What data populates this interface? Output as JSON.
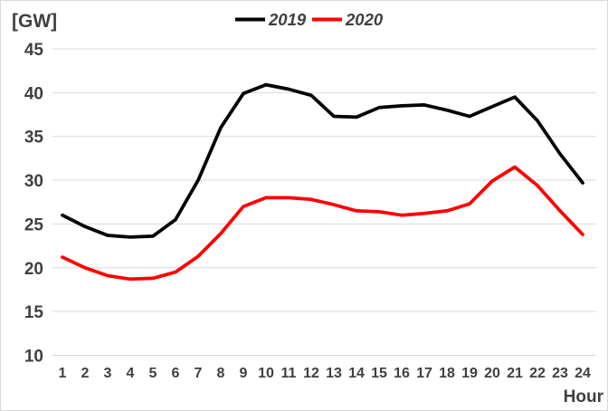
{
  "chart_data": {
    "type": "line",
    "title": "",
    "ylabel": "[GW]",
    "xlabel": "Hour",
    "x": [
      1,
      2,
      3,
      4,
      5,
      6,
      7,
      8,
      9,
      10,
      11,
      12,
      13,
      14,
      15,
      16,
      17,
      18,
      19,
      20,
      21,
      22,
      23,
      24
    ],
    "x_tick_labels": [
      "1",
      "2",
      "3",
      "4",
      "5",
      "6",
      "7",
      "8",
      "9",
      "10",
      "11",
      "12",
      "13",
      "14",
      "15",
      "16",
      "17",
      "18",
      "19",
      "20",
      "21",
      "22",
      "23",
      "24"
    ],
    "y_ticks": [
      45,
      40,
      35,
      30,
      25,
      20,
      15,
      10
    ],
    "ylim": [
      10,
      45
    ],
    "grid": "horizontal",
    "legend_position": "top-center",
    "series": [
      {
        "name": "2019",
        "color": "#000000",
        "values": [
          26.0,
          24.7,
          23.7,
          23.5,
          23.6,
          25.5,
          30.0,
          36.0,
          39.9,
          40.9,
          40.4,
          39.7,
          37.3,
          37.2,
          38.3,
          38.5,
          38.6,
          38.0,
          37.3,
          38.4,
          39.5,
          36.8,
          33.0,
          29.7
        ]
      },
      {
        "name": "2020",
        "color": "#ff0000",
        "values": [
          21.2,
          20.0,
          19.1,
          18.7,
          18.8,
          19.5,
          21.3,
          23.9,
          27.0,
          28.0,
          28.0,
          27.8,
          27.2,
          26.5,
          26.4,
          26.0,
          26.2,
          26.5,
          27.3,
          29.9,
          31.5,
          29.4,
          26.5,
          23.8
        ]
      }
    ],
    "colors": {
      "axis_text": "#404040",
      "gridline": "#d9d9d9",
      "background": "#ffffff"
    }
  }
}
